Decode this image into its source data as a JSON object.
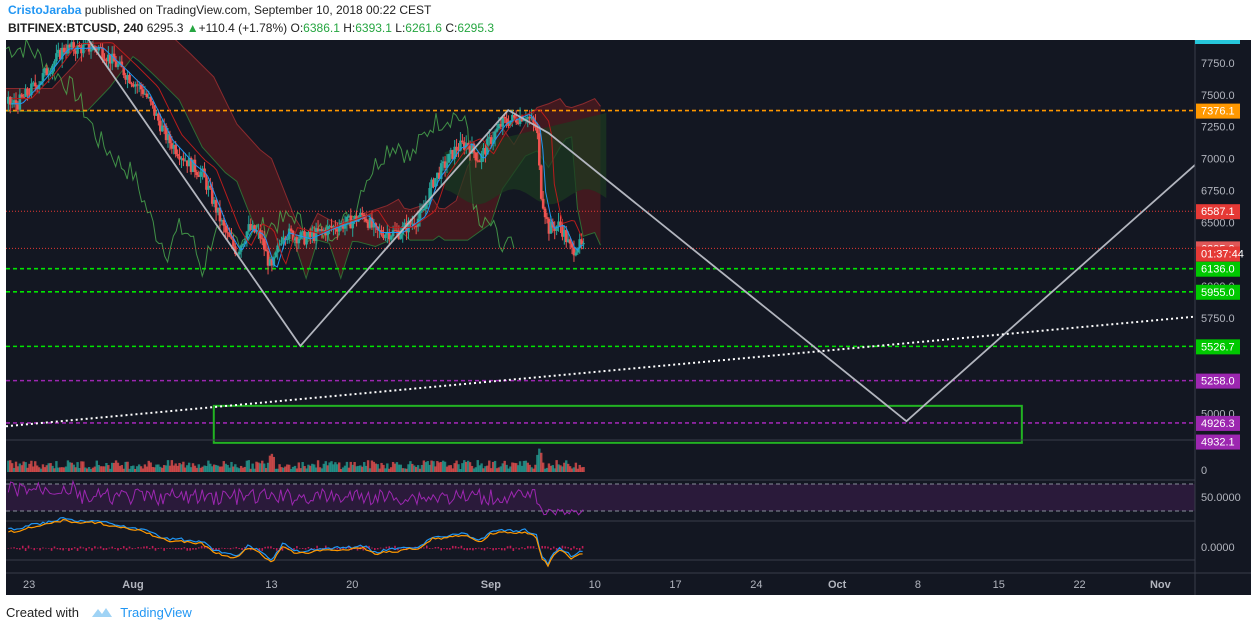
{
  "header": {
    "author": "CristoJaraba",
    "published_text": "published on TradingView.com, September 10, 2018 00:22 CEST",
    "symbol": "BITFINEX:BTCUSD, 240",
    "last_price": "6295.3",
    "change": "+110.4 (+1.78%)",
    "open_label": "O:",
    "open": "6386.1",
    "high_label": "H:",
    "high": "6393.1",
    "low_label": "L:",
    "low": "6261.6",
    "close_label": "C:",
    "close": "6295.3"
  },
  "footer": {
    "created_with": "Created with",
    "brand": "TradingView"
  },
  "colors": {
    "background": "#131722",
    "candle_up": "#26a69a",
    "candle_down": "#ef5350",
    "cloud_red": "#5b1a1e",
    "cloud_green": "#1c3a1f",
    "orange_line": "#ff9800",
    "red_line": "#e53935",
    "green_line": "#00e600",
    "purple_line": "#9c27b0",
    "drawing": "#b2b5be",
    "rsi_fill": "#2a1a3a",
    "rsi_line": "#9c27b0"
  },
  "chart_data": {
    "type": "candlestick",
    "price_axis_ticks": [
      7750,
      7500,
      7250,
      7000,
      6750,
      6500,
      6250,
      6000,
      5750,
      5500,
      5250,
      5000
    ],
    "price_axis_tick_labels": [
      "7750.0",
      "7500.0",
      "7250.0",
      "7000.0",
      "6750.0",
      "6500.0",
      "6250.0",
      "6000.0",
      "5750.0",
      "5500.0",
      "5250.0",
      "5000.0"
    ],
    "ylim": [
      4800,
      7930
    ],
    "time_axis_labels": [
      "23",
      "Aug",
      "13",
      "20",
      "Sep",
      "10",
      "17",
      "24",
      "Oct",
      "8",
      "15",
      "22",
      "Nov"
    ],
    "time_axis_positions": [
      -9,
      0,
      12,
      19,
      31,
      40,
      47,
      54,
      61,
      68,
      75,
      82,
      89
    ],
    "time_range_days": [
      -11,
      92
    ],
    "price_path": [
      [
        -10,
        7430
      ],
      [
        -8,
        7620
      ],
      [
        -6,
        7860
      ],
      [
        -3,
        7870
      ],
      [
        -1,
        7700
      ],
      [
        1,
        7520
      ],
      [
        3,
        7150
      ],
      [
        5,
        6950
      ],
      [
        6,
        6880
      ],
      [
        8,
        6420
      ],
      [
        9,
        6270
      ],
      [
        10,
        6450
      ],
      [
        11,
        6400
      ],
      [
        12,
        6120
      ],
      [
        13,
        6420
      ],
      [
        15,
        6370
      ],
      [
        17,
        6450
      ],
      [
        19,
        6510
      ],
      [
        20,
        6560
      ],
      [
        21,
        6420
      ],
      [
        23,
        6420
      ],
      [
        25,
        6550
      ],
      [
        26,
        6820
      ],
      [
        27,
        6950
      ],
      [
        28,
        7080
      ],
      [
        29,
        7120
      ],
      [
        30,
        6990
      ],
      [
        31,
        7150
      ],
      [
        32,
        7280
      ],
      [
        33,
        7310
      ],
      [
        34,
        7350
      ],
      [
        35,
        7230
      ],
      [
        35.3,
        6760
      ],
      [
        36,
        6450
      ],
      [
        37,
        6480
      ],
      [
        37.5,
        6380
      ],
      [
        38,
        6270
      ],
      [
        38.5,
        6330
      ],
      [
        39,
        6290
      ]
    ],
    "horizontal_levels": [
      {
        "price": 7376.1,
        "label": "7376.1",
        "color": "#ff9800",
        "style": "dashed"
      },
      {
        "price": 6587.1,
        "label": "6587.1",
        "color": "#e53935",
        "style": "dotted"
      },
      {
        "price": 6295.3,
        "label": "6295.3",
        "color": "#e53935",
        "style": "dotted"
      },
      {
        "price": 6136.0,
        "label": "6136.0",
        "color": "#00e600",
        "style": "dashed"
      },
      {
        "price": 5955.0,
        "label": "5955.0",
        "color": "#00e600",
        "style": "dashed"
      },
      {
        "price": 5526.7,
        "label": "5526.7",
        "color": "#00e600",
        "style": "dashed"
      },
      {
        "price": 5258.0,
        "label": "5258.0",
        "color": "#9c27b0",
        "style": "dashed"
      },
      {
        "price": 4926.3,
        "label": "4926.3",
        "color": "#9c27b0",
        "style": "dashed"
      }
    ],
    "extra_price_labels": [
      {
        "price": 6255.0,
        "label": "01:37:44",
        "color": "#e53935"
      },
      {
        "price": 4780.0,
        "label": "4932.1",
        "color": "#9c27b0"
      }
    ],
    "drawing_zigzag": [
      [
        -4,
        7950
      ],
      [
        14.5,
        5530
      ],
      [
        32.5,
        7380
      ],
      [
        36,
        7200
      ],
      [
        67,
        4940
      ],
      [
        92,
        6950
      ]
    ],
    "trendline_dotted": [
      [
        -11,
        4900
      ],
      [
        92,
        5760
      ]
    ],
    "target_box": {
      "x0": 7,
      "x1": 77,
      "y0": 5060,
      "y1": 4770
    },
    "volume_panel": {
      "axis_label": "0"
    },
    "rsi_panel": {
      "axis_label": "50.0000",
      "upper": 70,
      "lower": 30
    },
    "macd_panel": {
      "axis_label": "0.0000"
    }
  }
}
